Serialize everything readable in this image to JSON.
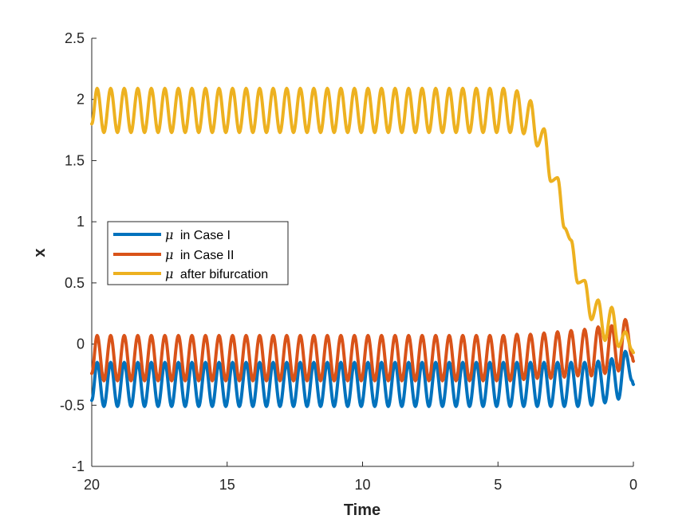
{
  "chart_data": {
    "type": "line",
    "xlabel": "Time",
    "ylabel": "x",
    "xlim": [
      20,
      0
    ],
    "x_reversed": true,
    "ylim": [
      -1,
      2.5
    ],
    "xticks": [
      20,
      15,
      10,
      5,
      0
    ],
    "xtick_labels": [
      "20",
      "15",
      "10",
      "5",
      "0"
    ],
    "yticks": [
      -1,
      -0.5,
      0,
      0.5,
      1,
      1.5,
      2,
      2.5
    ],
    "ytick_labels": [
      "-1",
      "-0.5",
      "0",
      "0.5",
      "1",
      "1.5",
      "2",
      "2.5"
    ],
    "grid": false,
    "legend_position": "center-left",
    "legend_symbol": "μ",
    "oscillation_period": 0.5,
    "series": [
      {
        "name": "in Case I",
        "color": "#0072BD",
        "baseline": -0.33,
        "amplitude": 0.185,
        "x": [
          20,
          19.8,
          19.55,
          19.3,
          19.05,
          18.8,
          18.55,
          18.3,
          18.05,
          17.8,
          17.55,
          17.3,
          17.05,
          16.8,
          16.55,
          16.3,
          16.05,
          15.8,
          15.55,
          15.3,
          15.05,
          14.8,
          14.55,
          14.3,
          14.05,
          13.8,
          13.55,
          13.3,
          13.05,
          12.8,
          12.55,
          12.3,
          12.05,
          11.8,
          11.55,
          11.3,
          11.05,
          10.8,
          10.55,
          10.3,
          10.05,
          9.8,
          9.55,
          9.3,
          9.05,
          8.8,
          8.55,
          8.3,
          8.05,
          7.8,
          7.55,
          7.3,
          7.05,
          6.8,
          6.55,
          6.3,
          6.05,
          5.8,
          5.55,
          5.3,
          5.05,
          4.8,
          4.55,
          4.3,
          4.05,
          3.8,
          3.55,
          3.3,
          3.05,
          2.8,
          2.55,
          2.3,
          2.05,
          1.8,
          1.55,
          1.3,
          1.05,
          0.8,
          0.55,
          0.3,
          0.05,
          0
        ],
        "y": [
          -0.46,
          -0.15,
          -0.51,
          -0.15,
          -0.51,
          -0.15,
          -0.51,
          -0.15,
          -0.51,
          -0.15,
          -0.51,
          -0.15,
          -0.51,
          -0.15,
          -0.51,
          -0.15,
          -0.51,
          -0.15,
          -0.51,
          -0.15,
          -0.51,
          -0.15,
          -0.51,
          -0.15,
          -0.51,
          -0.15,
          -0.51,
          -0.15,
          -0.51,
          -0.15,
          -0.51,
          -0.15,
          -0.51,
          -0.15,
          -0.51,
          -0.15,
          -0.51,
          -0.15,
          -0.51,
          -0.15,
          -0.51,
          -0.15,
          -0.51,
          -0.15,
          -0.51,
          -0.15,
          -0.51,
          -0.15,
          -0.51,
          -0.15,
          -0.51,
          -0.15,
          -0.51,
          -0.15,
          -0.51,
          -0.15,
          -0.51,
          -0.15,
          -0.51,
          -0.15,
          -0.51,
          -0.15,
          -0.51,
          -0.15,
          -0.51,
          -0.15,
          -0.51,
          -0.15,
          -0.51,
          -0.15,
          -0.51,
          -0.15,
          -0.51,
          -0.15,
          -0.5,
          -0.14,
          -0.48,
          -0.12,
          -0.45,
          -0.06,
          -0.3,
          -0.33
        ]
      },
      {
        "name": "in Case II",
        "color": "#D95319",
        "baseline": -0.115,
        "amplitude": 0.19,
        "x": [
          20,
          19.8,
          19.55,
          19.3,
          19.05,
          18.8,
          18.55,
          18.3,
          18.05,
          17.8,
          17.55,
          17.3,
          17.05,
          16.8,
          16.55,
          16.3,
          16.05,
          15.8,
          15.55,
          15.3,
          15.05,
          14.8,
          14.55,
          14.3,
          14.05,
          13.8,
          13.55,
          13.3,
          13.05,
          12.8,
          12.55,
          12.3,
          12.05,
          11.8,
          11.55,
          11.3,
          11.05,
          10.8,
          10.55,
          10.3,
          10.05,
          9.8,
          9.55,
          9.3,
          9.05,
          8.8,
          8.55,
          8.3,
          8.05,
          7.8,
          7.55,
          7.3,
          7.05,
          6.8,
          6.55,
          6.3,
          6.05,
          5.8,
          5.55,
          5.3,
          5.05,
          4.8,
          4.55,
          4.3,
          4.05,
          3.8,
          3.55,
          3.3,
          3.05,
          2.8,
          2.55,
          2.3,
          2.05,
          1.8,
          1.55,
          1.3,
          1.05,
          0.8,
          0.55,
          0.3,
          0.05,
          0
        ],
        "y": [
          -0.24,
          0.07,
          -0.3,
          0.07,
          -0.3,
          0.07,
          -0.3,
          0.07,
          -0.3,
          0.07,
          -0.3,
          0.07,
          -0.3,
          0.07,
          -0.3,
          0.07,
          -0.3,
          0.07,
          -0.3,
          0.07,
          -0.3,
          0.07,
          -0.3,
          0.07,
          -0.3,
          0.07,
          -0.3,
          0.07,
          -0.3,
          0.07,
          -0.3,
          0.07,
          -0.3,
          0.07,
          -0.3,
          0.07,
          -0.3,
          0.07,
          -0.3,
          0.07,
          -0.3,
          0.07,
          -0.3,
          0.07,
          -0.3,
          0.07,
          -0.3,
          0.07,
          -0.3,
          0.07,
          -0.3,
          0.07,
          -0.3,
          0.07,
          -0.3,
          0.07,
          -0.3,
          0.07,
          -0.3,
          0.07,
          -0.3,
          0.07,
          -0.3,
          0.08,
          -0.29,
          0.08,
          -0.28,
          0.09,
          -0.28,
          0.1,
          -0.27,
          0.11,
          -0.26,
          0.12,
          -0.26,
          0.14,
          -0.24,
          0.15,
          -0.22,
          0.2,
          -0.1,
          -0.14
        ]
      },
      {
        "name": "after bifurcation",
        "color": "#EDB120",
        "baseline": "varies",
        "amplitude": 0.185,
        "x": [
          20,
          19.8,
          19.55,
          19.3,
          19.05,
          18.8,
          18.55,
          18.3,
          18.05,
          17.8,
          17.55,
          17.3,
          17.05,
          16.8,
          16.55,
          16.3,
          16.05,
          15.8,
          15.55,
          15.3,
          15.05,
          14.8,
          14.55,
          14.3,
          14.05,
          13.8,
          13.55,
          13.3,
          13.05,
          12.8,
          12.55,
          12.3,
          12.05,
          11.8,
          11.55,
          11.3,
          11.05,
          10.8,
          10.55,
          10.3,
          10.05,
          9.8,
          9.55,
          9.3,
          9.05,
          8.8,
          8.55,
          8.3,
          8.05,
          7.8,
          7.55,
          7.3,
          7.05,
          6.8,
          6.55,
          6.3,
          6.05,
          5.8,
          5.55,
          5.3,
          5.05,
          4.8,
          4.55,
          4.3,
          4.05,
          3.8,
          3.55,
          3.3,
          3.05,
          2.8,
          2.55,
          2.3,
          2.05,
          1.8,
          1.55,
          1.3,
          1.05,
          0.8,
          0.55,
          0.3,
          0.05,
          0
        ],
        "y": [
          1.8,
          2.09,
          1.73,
          2.09,
          1.73,
          2.09,
          1.73,
          2.09,
          1.73,
          2.09,
          1.73,
          2.09,
          1.73,
          2.09,
          1.73,
          2.09,
          1.73,
          2.09,
          1.73,
          2.09,
          1.73,
          2.09,
          1.73,
          2.09,
          1.73,
          2.09,
          1.73,
          2.09,
          1.73,
          2.09,
          1.73,
          2.09,
          1.73,
          2.09,
          1.73,
          2.09,
          1.73,
          2.09,
          1.73,
          2.09,
          1.73,
          2.09,
          1.73,
          2.09,
          1.73,
          2.09,
          1.73,
          2.09,
          1.73,
          2.09,
          1.73,
          2.09,
          1.73,
          2.09,
          1.73,
          2.09,
          1.73,
          2.09,
          1.73,
          2.09,
          1.73,
          2.09,
          1.73,
          2.07,
          1.72,
          1.99,
          1.62,
          1.76,
          1.33,
          1.36,
          0.95,
          0.85,
          0.5,
          0.52,
          0.2,
          0.36,
          0.03,
          0.3,
          -0.02,
          0.1,
          -0.05,
          -0.07
        ]
      }
    ]
  }
}
